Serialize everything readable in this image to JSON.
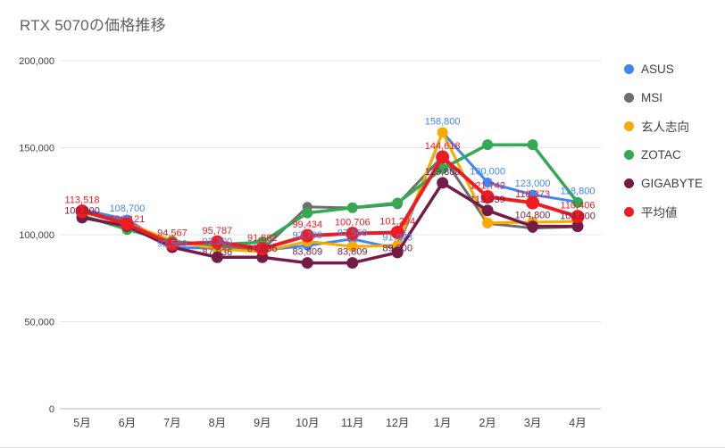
{
  "title": "RTX 5070の価格推移",
  "chart_data": {
    "type": "line",
    "title": "RTX 5070の価格推移",
    "categories": [
      "5月",
      "6月",
      "7月",
      "8月",
      "9月",
      "10月",
      "11月",
      "12月",
      "1月",
      "2月",
      "3月",
      "4月"
    ],
    "xlabel": "",
    "ylabel": "",
    "ylim": [
      0,
      200000
    ],
    "grid": true,
    "legend_position": "right",
    "y_ticks": [
      {
        "value": 0,
        "label": "0"
      },
      {
        "value": 50000,
        "label": "50,000"
      },
      {
        "value": 100000,
        "label": "100,000"
      },
      {
        "value": 150000,
        "label": "150,000"
      },
      {
        "value": 200000,
        "label": "200,000"
      }
    ],
    "series": [
      {
        "name": "ASUS",
        "color": "#4285F4",
        "line_width": 3,
        "point_radius": 5.5,
        "values": [
          114500,
          108700,
          92589,
          92300,
          91000,
          93798,
          97560,
          91973,
          158800,
          130000,
          123000,
          118800
        ],
        "labels": [
          null,
          "108,700",
          "92,589",
          "92,300",
          null,
          "93,798",
          "97,560",
          "91,973",
          "158,800",
          "130,000",
          "123,000",
          "118,800"
        ]
      },
      {
        "name": "MSI",
        "color": "#6e6e6e",
        "line_width": 3,
        "point_radius": 5.5,
        "values": [
          114000,
          107000,
          95500,
          93500,
          91500,
          116000,
          115400,
          117500,
          145000,
          106500,
          103800,
          104600
        ],
        "labels": [
          null,
          null,
          null,
          null,
          null,
          null,
          null,
          null,
          null,
          null,
          null,
          null
        ]
      },
      {
        "name": "玄人志向",
        "color": "#F9AB00",
        "line_width": 3,
        "point_radius": 6,
        "values": [
          113000,
          106500,
          96500,
          91800,
          90200,
          96200,
          93200,
          93800,
          158800,
          106800,
          107200,
          107600
        ],
        "labels": [
          null,
          null,
          null,
          null,
          null,
          null,
          null,
          null,
          null,
          null,
          null,
          null
        ]
      },
      {
        "name": "ZOTAC",
        "color": "#34A853",
        "line_width": 3.5,
        "point_radius": 6,
        "values": [
          111000,
          103000,
          96000,
          94200,
          95800,
          112500,
          115500,
          118200,
          138000,
          151700,
          151700,
          118500
        ],
        "labels": [
          null,
          null,
          null,
          null,
          null,
          null,
          null,
          null,
          null,
          null,
          null,
          null
        ]
      },
      {
        "name": "GIGABYTE",
        "color": "#741B47",
        "line_width": 3.5,
        "point_radius": 6.5,
        "values": [
          109800,
          105000,
          92800,
          87036,
          87036,
          83809,
          83809,
          89800,
          129800,
          113939,
          104800,
          104800
        ],
        "labels": [
          "109,800",
          null,
          null,
          "87,036",
          "87,036",
          "83,809",
          "83,809",
          "89,800",
          "129,800",
          "113,939",
          "104,800",
          "104,800"
        ]
      },
      {
        "name": "平均値",
        "color": "#EC1C24",
        "line_width": 4,
        "point_radius": 7.5,
        "values": [
          113518,
          106121,
          94567,
          95787,
          91882,
          99434,
          100706,
          101294,
          144618,
          121742,
          118373,
          110406
        ],
        "labels": [
          "113,518",
          "106,121",
          "94,567",
          "95,787",
          "91,882",
          "99,434",
          "100,706",
          "101,294",
          "144,618",
          "121,742",
          "118,373",
          "110,406"
        ]
      }
    ]
  }
}
